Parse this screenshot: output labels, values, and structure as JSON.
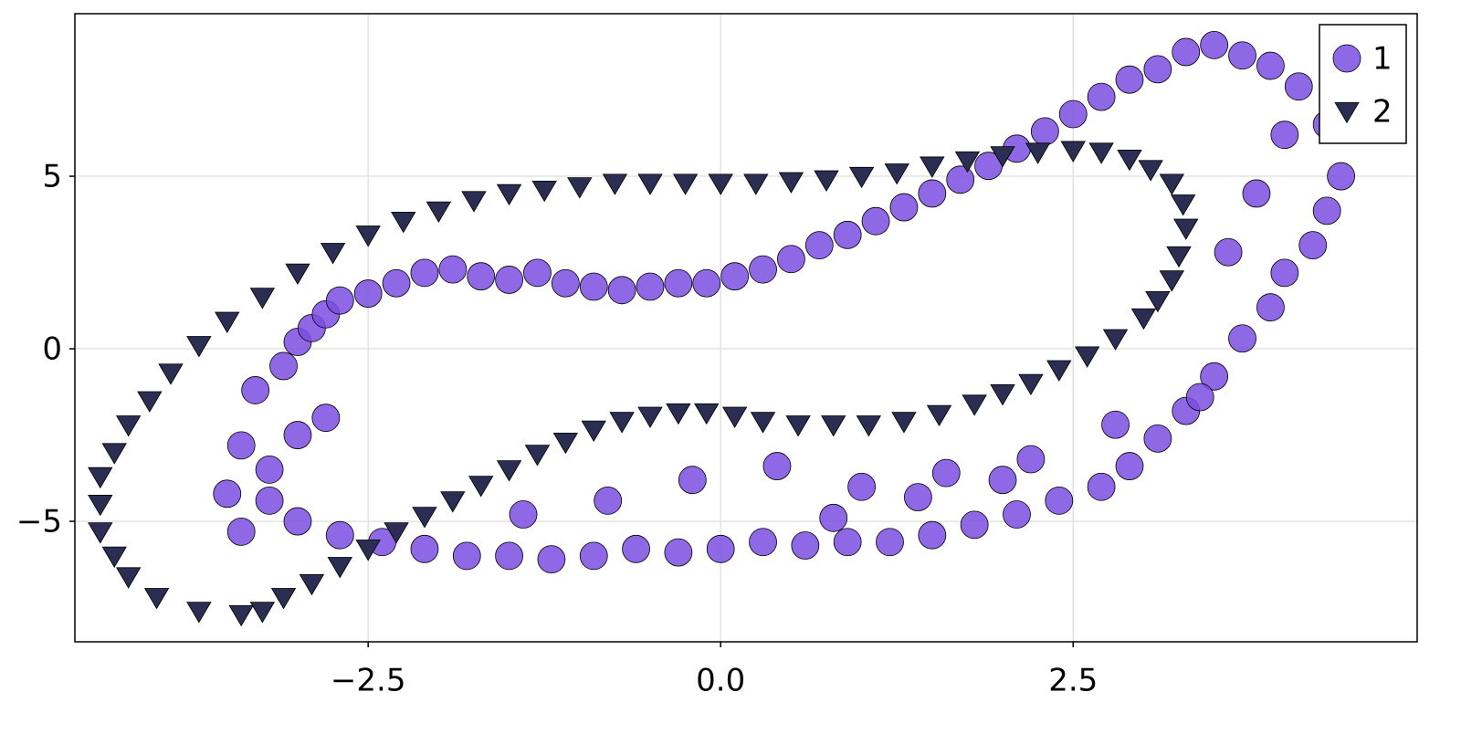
{
  "chart_data": {
    "type": "scatter",
    "xlim": [
      -4.58,
      4.94
    ],
    "ylim": [
      -8.49,
      9.71
    ],
    "xticks": [
      {
        "value": -2.5,
        "label": "−2.5"
      },
      {
        "value": 0,
        "label": "0.0"
      },
      {
        "value": 2.5,
        "label": "2.5"
      }
    ],
    "yticks": [
      {
        "value": -5,
        "label": "−5"
      },
      {
        "value": 0,
        "label": "0"
      },
      {
        "value": 5,
        "label": "5"
      }
    ],
    "grid": true,
    "legend": "top-right",
    "series": [
      {
        "name": "1",
        "color": "#7b4fe0",
        "marker": "circle",
        "x": [
          -3.5,
          -3.4,
          -3.3,
          -3.2,
          -3.1,
          -3.0,
          -2.9,
          -2.8,
          -2.7,
          -2.5,
          -2.3,
          -2.1,
          -1.9,
          -1.7,
          -1.5,
          -1.3,
          -1.1,
          -0.9,
          -0.7,
          -0.5,
          -0.3,
          -0.1,
          0.1,
          0.3,
          0.5,
          0.7,
          0.9,
          1.1,
          1.3,
          1.5,
          1.7,
          1.9,
          2.1,
          2.3,
          2.5,
          2.7,
          2.9,
          3.1,
          3.3,
          3.5,
          3.7,
          3.9,
          4.1,
          4.3,
          4.4,
          4.3,
          4.2,
          4.0,
          3.9,
          3.7,
          3.5,
          3.3,
          3.1,
          2.9,
          2.7,
          2.4,
          2.1,
          1.8,
          1.5,
          1.2,
          0.9,
          0.6,
          0.3,
          0.0,
          -0.3,
          -0.6,
          -0.9,
          -1.2,
          -1.5,
          -1.8,
          -2.1,
          -2.4,
          -2.7,
          -3.0,
          -3.2,
          -3.4,
          -3.0,
          -2.8,
          -0.2,
          0.4,
          1.0,
          1.6,
          2.2,
          2.8,
          3.4,
          3.6,
          3.8,
          4.0,
          -0.8,
          -1.4,
          0.8,
          1.4,
          2.0
        ],
        "values": [
          -4.2,
          -2.8,
          -1.2,
          -3.5,
          -0.5,
          0.2,
          0.6,
          1.0,
          1.4,
          1.6,
          1.9,
          2.2,
          2.3,
          2.1,
          2.0,
          2.2,
          1.9,
          1.8,
          1.7,
          1.8,
          1.9,
          1.9,
          2.1,
          2.3,
          2.6,
          3.0,
          3.3,
          3.7,
          4.1,
          4.5,
          4.9,
          5.3,
          5.8,
          6.3,
          6.8,
          7.3,
          7.8,
          8.1,
          8.6,
          8.8,
          8.5,
          8.2,
          7.6,
          6.5,
          5.0,
          4.0,
          3.0,
          2.2,
          1.2,
          0.3,
          -0.8,
          -1.8,
          -2.6,
          -3.4,
          -4.0,
          -4.4,
          -4.8,
          -5.1,
          -5.4,
          -5.6,
          -5.6,
          -5.7,
          -5.6,
          -5.8,
          -5.9,
          -5.8,
          -6.0,
          -6.1,
          -6.0,
          -6.0,
          -5.8,
          -5.6,
          -5.4,
          -5.0,
          -4.4,
          -5.3,
          -2.5,
          -2.0,
          -3.8,
          -3.4,
          -4.0,
          -3.6,
          -3.2,
          -2.2,
          -1.4,
          2.8,
          4.5,
          6.2,
          -4.4,
          -4.8,
          -4.9,
          -4.3,
          -3.8
        ]
      },
      {
        "name": "2",
        "color": "#2b2d52",
        "marker": "triangle-down",
        "x": [
          -3.4,
          -3.7,
          -4.0,
          -4.2,
          -4.3,
          -4.4,
          -4.4,
          -4.4,
          -4.3,
          -4.2,
          -4.05,
          -3.9,
          -3.7,
          -3.5,
          -3.25,
          -3.0,
          -2.75,
          -2.5,
          -2.25,
          -2.0,
          -1.75,
          -1.5,
          -1.25,
          -1.0,
          -0.75,
          -0.5,
          -0.25,
          0.0,
          0.25,
          0.5,
          0.75,
          1.0,
          1.25,
          1.5,
          1.75,
          2.0,
          2.25,
          2.5,
          2.7,
          2.9,
          3.05,
          3.2,
          3.28,
          3.3,
          3.25,
          3.2,
          3.1,
          3.0,
          2.8,
          2.6,
          2.4,
          2.2,
          2.0,
          1.8,
          1.55,
          1.3,
          1.05,
          0.8,
          0.55,
          0.3,
          0.1,
          -0.1,
          -0.3,
          -0.5,
          -0.7,
          -0.9,
          -1.1,
          -1.3,
          -1.5,
          -1.7,
          -1.9,
          -2.1,
          -2.3,
          -2.5,
          -2.7,
          -2.9,
          -3.1,
          -3.25
        ],
        "values": [
          -7.7,
          -7.6,
          -7.2,
          -6.6,
          -6.0,
          -5.3,
          -4.5,
          -3.7,
          -3.0,
          -2.2,
          -1.5,
          -0.7,
          0.1,
          0.8,
          1.5,
          2.2,
          2.8,
          3.3,
          3.7,
          4.0,
          4.3,
          4.5,
          4.6,
          4.7,
          4.8,
          4.8,
          4.8,
          4.8,
          4.8,
          4.85,
          4.9,
          5.0,
          5.1,
          5.3,
          5.45,
          5.6,
          5.7,
          5.75,
          5.7,
          5.5,
          5.2,
          4.8,
          4.2,
          3.5,
          2.7,
          2.0,
          1.4,
          0.9,
          0.3,
          -0.2,
          -0.6,
          -1.0,
          -1.3,
          -1.6,
          -1.9,
          -2.1,
          -2.2,
          -2.2,
          -2.2,
          -2.1,
          -1.95,
          -1.85,
          -1.85,
          -1.95,
          -2.1,
          -2.35,
          -2.7,
          -3.05,
          -3.5,
          -3.95,
          -4.4,
          -4.85,
          -5.3,
          -5.8,
          -6.3,
          -6.8,
          -7.2,
          -7.6
        ]
      }
    ]
  }
}
